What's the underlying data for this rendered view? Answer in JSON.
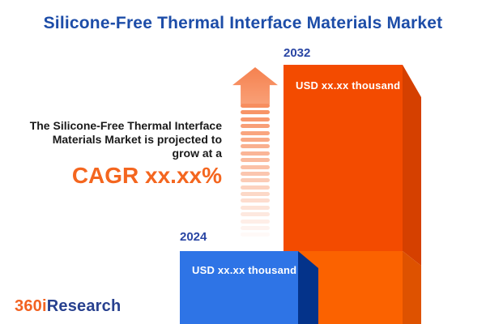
{
  "title": "Silicone-Free Thermal Interface Materials Market",
  "desc": {
    "line1": "The Silicone-Free Thermal Interface",
    "line2": "Materials Market is projected to",
    "line3": "grow at a",
    "cagr": "CAGR xx.xx%"
  },
  "bars": {
    "y2024": {
      "year": "2024",
      "value": "USD xx.xx thousand"
    },
    "y2032": {
      "year": "2032",
      "value": "USD xx.xx thousand"
    }
  },
  "arrow": {
    "icon": "growth-up-arrow-icon",
    "stripe_count": 20
  },
  "logo": {
    "part1": "360i",
    "part2": "Research"
  },
  "colors": {
    "title_blue": "#1d4da8",
    "year_blue": "#2a46a4",
    "text_dark": "#1a1a1a",
    "cagr_orange": "#f4661f",
    "bar2032_front_top": "#f34b00",
    "bar2032_side_top": "#d54000",
    "bar2032_front_bottom": "#fb6200",
    "bar2032_side_bottom": "#de5200",
    "bar2024_front": "#2e74e6",
    "bar2024_side": "#04338a",
    "value_text": "#ffffff",
    "arrow_head_top": "#f5814f",
    "arrow_head_bottom": "#f9a077",
    "arrow_stripe": "#f78e5f",
    "logo_orange": "#f26322",
    "logo_blue": "#28418f"
  },
  "chart_data": {
    "type": "bar",
    "categories": [
      "2024",
      "2032"
    ],
    "values": [
      null,
      null
    ],
    "value_labels": [
      "USD xx.xx thousand",
      "USD xx.xx thousand"
    ],
    "series_note": "values masked as xx.xx in source image",
    "title": "Silicone-Free Thermal Interface Materials Market",
    "annotation": "The Silicone-Free Thermal Interface Materials Market is projected to grow at a CAGR xx.xx%",
    "bar_colors": [
      "#2e74e6",
      "#f34b00"
    ],
    "legend_position": "none",
    "grid": false,
    "style": "3d-extruded bars, orange 2032 bar shows 2024-level segment in lighter orange at its base"
  }
}
